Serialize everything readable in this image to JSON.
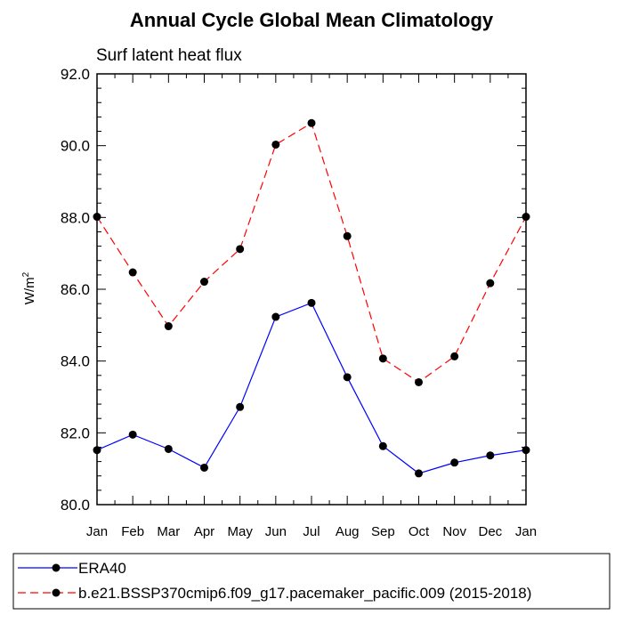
{
  "chart_data": {
    "type": "line",
    "title": "Annual Cycle Global Mean Climatology",
    "subtitle": "Surf latent heat flux",
    "ylabel_base": "W/m",
    "ylabel_sup": "2",
    "xlabel": "",
    "categories": [
      "Jan",
      "Feb",
      "Mar",
      "Apr",
      "May",
      "Jun",
      "Jul",
      "Aug",
      "Sep",
      "Oct",
      "Nov",
      "Dec",
      "Jan"
    ],
    "ylim": [
      80.0,
      92.0
    ],
    "yticks": [
      "80.0",
      "82.0",
      "84.0",
      "86.0",
      "88.0",
      "90.0",
      "92.0"
    ],
    "grid": false,
    "legend_position": "bottom",
    "series": [
      {
        "name": "ERA40",
        "color": "#0000ff",
        "dash": "solid",
        "values": [
          81.52,
          81.95,
          81.55,
          81.03,
          82.72,
          85.23,
          85.62,
          83.55,
          81.63,
          80.87,
          81.17,
          81.37,
          81.52
        ]
      },
      {
        "name": "b.e21.BSSP370cmip6.f09_g17.pacemaker_pacific.009 (2015-2018)",
        "color": "#ff0000",
        "dash": "dashed",
        "values": [
          88.02,
          86.47,
          84.97,
          86.21,
          87.12,
          90.03,
          90.63,
          87.48,
          84.07,
          83.41,
          84.13,
          86.17,
          88.02
        ]
      }
    ]
  }
}
